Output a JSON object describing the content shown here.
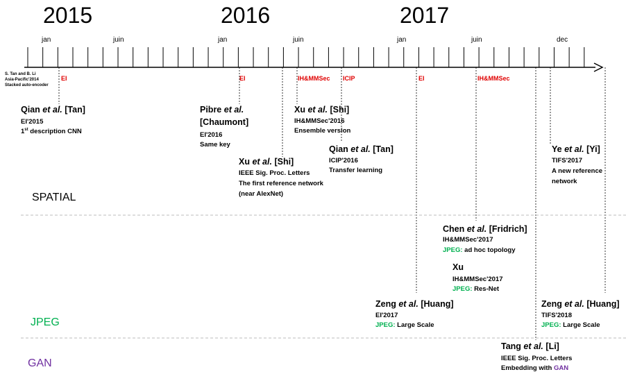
{
  "timeline": {
    "years": [
      "2015",
      "2016",
      "2017"
    ],
    "months": [
      "jan",
      "juin",
      "jan",
      "juin",
      "jan",
      "juin",
      "dec"
    ],
    "conferences": [
      "EI",
      "EI",
      "IH&MMSec",
      "ICIP",
      "EI",
      "IH&MMSec"
    ],
    "note": [
      "S. Tan and B. Li",
      "Asia-Pacific'2014",
      "Stacked auto-encoder"
    ]
  },
  "sections": [
    "SPATIAL",
    "JPEG",
    "GAN"
  ],
  "entries": [
    {
      "name": "Qian",
      "etal": "et al.",
      "advisor": "[Tan]",
      "details": [
        "EI'2015",
        {
          "text": "1",
          "sup": "st",
          "rest": " description CNN"
        }
      ]
    },
    {
      "name": "Pibre",
      "etal": "et al.",
      "advisor": "[Chaumont]",
      "details": [
        "EI'2016",
        "Same key"
      ]
    },
    {
      "name": "Xu",
      "etal": "et al.",
      "advisor": "[Shi]",
      "details": [
        "IH&MMSec'2016",
        "Ensemble version"
      ]
    },
    {
      "name": "Qian",
      "etal": "et al.",
      "advisor": "[Tan]",
      "details": [
        "ICIP'2016",
        "Transfer learning"
      ]
    },
    {
      "name": "Xu",
      "etal": "et al.",
      "advisor": "[Shi]",
      "details": [
        "IEEE Sig. Proc. Letters",
        "The first reference network",
        "(near AlexNet)"
      ]
    },
    {
      "name": "Ye",
      "etal": "et al.",
      "advisor": "[Yi]",
      "details": [
        "TIFS'2017",
        "A new reference",
        "network"
      ]
    },
    {
      "name": "Chen",
      "etal": "et al.",
      "advisor": "[Fridrich]",
      "details": [
        "IH&MMSec'2017",
        {
          "prefix": "JPEG:",
          "text": " ad hoc topology"
        }
      ]
    },
    {
      "name": "Xu",
      "details": [
        "IH&MMSec'2017",
        {
          "prefix": "JPEG:",
          "text": " Res-Net"
        }
      ]
    },
    {
      "name": "Zeng",
      "etal": "et al.",
      "advisor": "[Huang]",
      "details": [
        "EI'2017",
        {
          "prefix": "JPEG:",
          "text": " Large Scale"
        }
      ]
    },
    {
      "name": "Zeng",
      "etal": "et al.",
      "advisor": "[Huang]",
      "details": [
        "TIFS'2018",
        {
          "prefix": "JPEG:",
          "text": " Large Scale"
        }
      ]
    },
    {
      "name": "Tang",
      "etal": "et al.",
      "advisor": "[Li]",
      "details": [
        "IEEE Sig. Proc. Letters",
        {
          "text": "Embedding with ",
          "suffix": "GAN"
        }
      ]
    }
  ]
}
